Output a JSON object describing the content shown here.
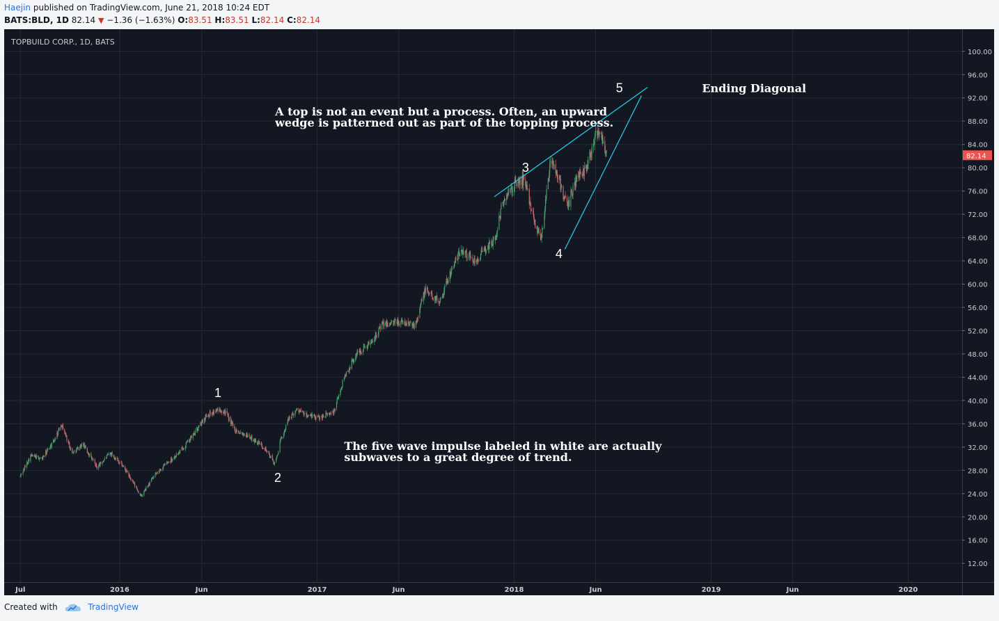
{
  "header": {
    "author": "Haejin",
    "published": "published on TradingView.com, June 21, 2018 10:24 EDT",
    "symbol": "BATS:BLD, 1D",
    "last": "82.14",
    "change": "−1.36 (−1.63%)",
    "o_label": "O:",
    "o_val": "83.51",
    "h_label": "H:",
    "h_val": "83.51",
    "l_label": "L:",
    "l_val": "82.14",
    "c_label": "C:",
    "c_val": "82.14"
  },
  "footer": {
    "created": "Created with",
    "brand": "TradingView"
  },
  "colors": {
    "bg": "#131722",
    "grid": "#262a36",
    "up": "#4a9a6b",
    "down": "#c06a6e",
    "trend": "#26c6da",
    "price_tag": "#ef5350",
    "text": "#e6e6e6",
    "axis_text": "#c8ccd4"
  },
  "chart_data": {
    "type": "candlestick",
    "title": "TOPBUILD CORP., 1D, BATS",
    "last_price_tag": "82.14",
    "y_ticks": [
      "100.00",
      "96.00",
      "92.00",
      "88.00",
      "84.00",
      "80.00",
      "76.00",
      "72.00",
      "68.00",
      "64.00",
      "60.00",
      "56.00",
      "52.00",
      "48.00",
      "44.00",
      "40.00",
      "36.00",
      "32.00",
      "28.00",
      "24.00",
      "20.00",
      "16.00",
      "12.00"
    ],
    "y_tick_values": [
      100,
      96,
      92,
      88,
      84,
      80,
      76,
      72,
      68,
      64,
      60,
      56,
      52,
      48,
      44,
      40,
      36,
      32,
      28,
      24,
      20,
      16,
      12
    ],
    "ylim": [
      8.8,
      103.8
    ],
    "x_ticks": [
      {
        "label": "Jul",
        "date": "2015-07-01"
      },
      {
        "label": "2016",
        "date": "2016-01-01"
      },
      {
        "label": "Jun",
        "date": "2016-06-01"
      },
      {
        "label": "2017",
        "date": "2017-01-01"
      },
      {
        "label": "Jun",
        "date": "2017-06-01"
      },
      {
        "label": "2018",
        "date": "2018-01-01"
      },
      {
        "label": "Jun",
        "date": "2018-06-01"
      },
      {
        "label": "2019",
        "date": "2019-01-01"
      },
      {
        "label": "Jun",
        "date": "2019-06-01"
      },
      {
        "label": "2020",
        "date": "2020-01-01"
      }
    ],
    "xlim": [
      "2015-06-01",
      "2020-04-10"
    ],
    "price_path": [
      [
        "2015-07-01",
        27.0
      ],
      [
        "2015-07-20",
        30.5
      ],
      [
        "2015-08-10",
        30.0
      ],
      [
        "2015-09-01",
        33.0
      ],
      [
        "2015-09-15",
        36.0
      ],
      [
        "2015-10-05",
        31.0
      ],
      [
        "2015-10-25",
        32.5
      ],
      [
        "2015-11-20",
        28.5
      ],
      [
        "2015-12-15",
        31.0
      ],
      [
        "2016-01-05",
        29.0
      ],
      [
        "2016-01-25",
        26.0
      ],
      [
        "2016-02-10",
        23.5
      ],
      [
        "2016-03-01",
        26.5
      ],
      [
        "2016-03-25",
        29.0
      ],
      [
        "2016-04-20",
        31.0
      ],
      [
        "2016-05-20",
        34.5
      ],
      [
        "2016-06-10",
        37.5
      ],
      [
        "2016-07-05",
        38.5
      ],
      [
        "2016-07-15",
        38.0
      ],
      [
        "2016-08-01",
        35.0
      ],
      [
        "2016-08-25",
        34.0
      ],
      [
        "2016-09-25",
        32.0
      ],
      [
        "2016-10-15",
        29.0
      ],
      [
        "2016-10-25",
        33.0
      ],
      [
        "2016-11-10",
        37.0
      ],
      [
        "2016-11-25",
        38.5
      ],
      [
        "2016-12-10",
        37.5
      ],
      [
        "2017-01-01",
        37.0
      ],
      [
        "2017-02-01",
        38.0
      ],
      [
        "2017-02-20",
        44.0
      ],
      [
        "2017-03-15",
        48.0
      ],
      [
        "2017-04-10",
        50.0
      ],
      [
        "2017-05-01",
        53.0
      ],
      [
        "2017-06-01",
        53.5
      ],
      [
        "2017-07-01",
        53.0
      ],
      [
        "2017-07-20",
        59.0
      ],
      [
        "2017-08-15",
        57.0
      ],
      [
        "2017-09-05",
        62.0
      ],
      [
        "2017-09-25",
        66.0
      ],
      [
        "2017-10-20",
        64.0
      ],
      [
        "2017-11-10",
        66.0
      ],
      [
        "2017-11-28",
        68.0
      ],
      [
        "2017-12-10",
        74.0
      ],
      [
        "2018-01-01",
        77.0
      ],
      [
        "2018-01-20",
        78.0
      ],
      [
        "2018-02-10",
        70.0
      ],
      [
        "2018-02-20",
        68.0
      ],
      [
        "2018-03-10",
        81.5
      ],
      [
        "2018-03-25",
        78.0
      ],
      [
        "2018-04-10",
        73.0
      ],
      [
        "2018-04-25",
        78.0
      ],
      [
        "2018-05-15",
        80.0
      ],
      [
        "2018-06-01",
        86.0
      ],
      [
        "2018-06-10",
        86.5
      ],
      [
        "2018-06-21",
        82.14
      ]
    ],
    "trendlines": [
      {
        "name": "wedge-upper",
        "from": [
          "2017-11-25",
          75.0
        ],
        "to": [
          "2018-09-05",
          93.8
        ]
      },
      {
        "name": "wedge-lower",
        "from": [
          "2018-04-05",
          66.0
        ],
        "to": [
          "2018-08-25",
          92.4
        ]
      }
    ],
    "annotations": [
      {
        "text": "1",
        "date": "2016-07-01",
        "price": 40.6
      },
      {
        "text": "2",
        "date": "2016-10-20",
        "price": 26.0
      },
      {
        "text": "3",
        "date": "2018-01-22",
        "price": 79.3
      },
      {
        "text": "4",
        "date": "2018-03-25",
        "price": 64.5
      },
      {
        "text": "5",
        "date": "2018-07-15",
        "price": 93.0
      }
    ],
    "notes": [
      {
        "text": "Ending Diagonal",
        "date": "2018-12-15",
        "price": 93.0
      },
      {
        "text": "A top is not an event but a process. Often, an upward wedge is patterned out as part of the topping process.",
        "date": "2016-10-15",
        "price": 89.0
      },
      {
        "text": "The five wave impulse labeled in white are actually subwaves to a great degree of trend.",
        "date": "2017-02-20",
        "price": 31.5
      }
    ]
  }
}
